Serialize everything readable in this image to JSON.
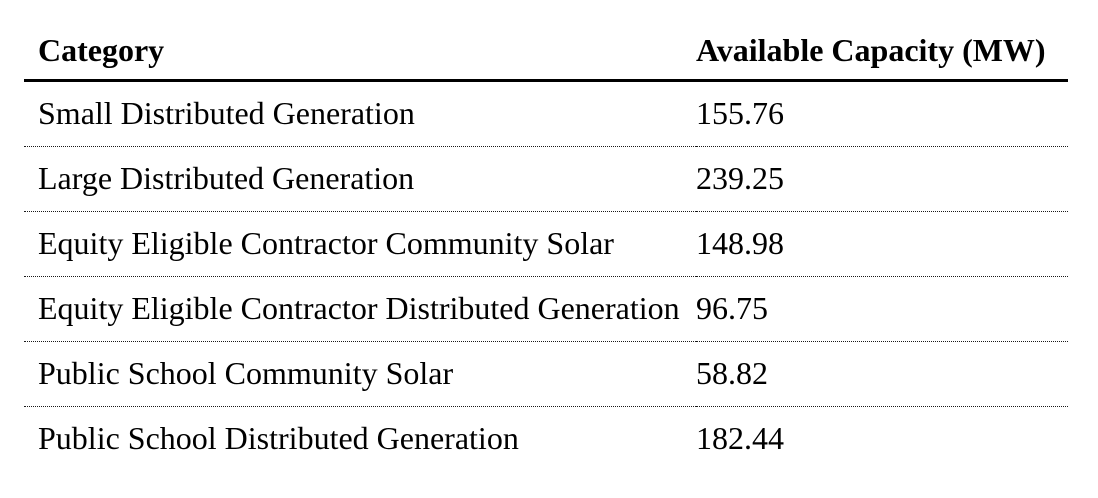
{
  "colors": {
    "text": "#000000",
    "background": "#ffffff",
    "header_rule": "#000000",
    "row_rule": "#1a1a1a"
  },
  "table": {
    "columns": [
      {
        "label": "Category"
      },
      {
        "label": "Available Capacity (MW)"
      }
    ],
    "rows": [
      {
        "category": "Small Distributed Generation",
        "capacity": "155.76"
      },
      {
        "category": "Large Distributed Generation",
        "capacity": "239.25"
      },
      {
        "category": "Equity Eligible Contractor Community Solar",
        "capacity": "148.98"
      },
      {
        "category": "Equity Eligible Contractor Distributed Generation",
        "capacity": "96.75"
      },
      {
        "category": "Public School Community Solar",
        "capacity": "58.82"
      },
      {
        "category": "Public School Distributed Generation",
        "capacity": "182.44"
      }
    ]
  },
  "chart_data": {
    "type": "table",
    "title": "",
    "columns": [
      "Category",
      "Available Capacity (MW)"
    ],
    "categories": [
      "Small Distributed Generation",
      "Large Distributed Generation",
      "Equity Eligible Contractor Community Solar",
      "Equity Eligible Contractor Distributed Generation",
      "Public School Community Solar",
      "Public School Distributed Generation"
    ],
    "values": [
      155.76,
      239.25,
      148.98,
      96.75,
      58.82,
      182.44
    ]
  }
}
